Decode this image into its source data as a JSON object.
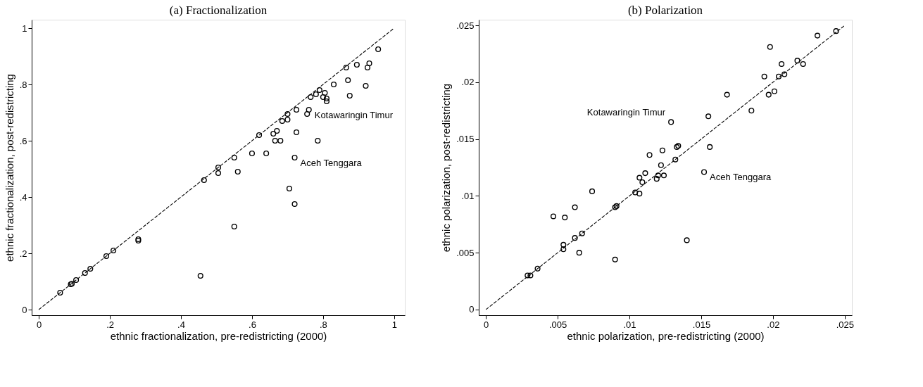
{
  "chart_data": [
    {
      "type": "scatter",
      "title": "(a) Fractionalization",
      "xlabel": "ethnic fractionalization, pre-redistricting (2000)",
      "ylabel": "ethnic fractionalization, post-redistricting",
      "grid": false,
      "xlim": [
        -0.02,
        1.03
      ],
      "ylim": [
        -0.02,
        1.03
      ],
      "xticks": [
        0,
        {
          "value": 0.2,
          "label": ".2"
        },
        {
          "value": 0.4,
          "label": ".4"
        },
        {
          "value": 0.6,
          "label": ".6"
        },
        {
          "value": 0.8,
          "label": ".8"
        },
        1
      ],
      "yticks": [
        0,
        {
          "value": 0.2,
          "label": ".2"
        },
        {
          "value": 0.4,
          "label": ".4"
        },
        {
          "value": 0.6,
          "label": ".6"
        },
        {
          "value": 0.8,
          "label": ".8"
        },
        1
      ],
      "annotations": [
        {
          "text": "Kotawaringin Timur",
          "x": 0.76,
          "y": 0.71
        },
        {
          "text": "Aceh Tenggara",
          "x": 0.72,
          "y": 0.54
        }
      ],
      "series": [
        {
          "type": "scatter",
          "marker": "circle",
          "color": "#000000",
          "x": [
            0.06,
            0.09,
            0.093,
            0.105,
            0.13,
            0.145,
            0.19,
            0.21,
            0.28,
            0.28,
            0.455,
            0.465,
            0.505,
            0.505,
            0.55,
            0.55,
            0.56,
            0.6,
            0.62,
            0.64,
            0.66,
            0.665,
            0.67,
            0.68,
            0.685,
            0.7,
            0.7,
            0.705,
            0.72,
            0.72,
            0.725,
            0.725,
            0.755,
            0.76,
            0.765,
            0.78,
            0.79,
            0.785,
            0.8,
            0.805,
            0.81,
            0.81,
            0.83,
            0.865,
            0.87,
            0.875,
            0.895,
            0.92,
            0.925,
            0.93,
            0.955
          ],
          "values": [
            0.06,
            0.09,
            0.092,
            0.105,
            0.13,
            0.145,
            0.19,
            0.21,
            0.25,
            0.245,
            0.12,
            0.46,
            0.505,
            0.485,
            0.54,
            0.295,
            0.49,
            0.555,
            0.62,
            0.555,
            0.625,
            0.6,
            0.635,
            0.6,
            0.67,
            0.695,
            0.675,
            0.43,
            0.54,
            0.375,
            0.71,
            0.63,
            0.695,
            0.71,
            0.755,
            0.765,
            0.78,
            0.6,
            0.755,
            0.77,
            0.75,
            0.74,
            0.8,
            0.86,
            0.815,
            0.76,
            0.87,
            0.795,
            0.86,
            0.875,
            0.925
          ]
        },
        {
          "type": "line",
          "color": "#000000",
          "line_style": "dashed",
          "x": [
            0,
            1
          ],
          "values": [
            0,
            1
          ]
        }
      ]
    },
    {
      "type": "scatter",
      "title": "(b) Polarization",
      "xlabel": "ethnic polarization, pre-redistricting (2000)",
      "ylabel": "ethnic polarization, post-redistricting",
      "grid": false,
      "xlim": [
        -0.0005,
        0.0255
      ],
      "ylim": [
        -0.0005,
        0.0255
      ],
      "xticks": [
        0,
        {
          "value": 0.005,
          "label": ".005"
        },
        {
          "value": 0.01,
          "label": ".01"
        },
        {
          "value": 0.015,
          "label": ".015"
        },
        {
          "value": 0.02,
          "label": ".02"
        },
        {
          "value": 0.025,
          "label": ".025"
        }
      ],
      "yticks": [
        0,
        {
          "value": 0.005,
          "label": ".005"
        },
        {
          "value": 0.01,
          "label": ".01"
        },
        {
          "value": 0.015,
          "label": ".015"
        },
        {
          "value": 0.02,
          "label": ".02"
        },
        {
          "value": 0.025,
          "label": ".025"
        }
      ],
      "annotations": [
        {
          "text": "Kotawaringin Timur",
          "x": 0.0129,
          "y": 0.0165
        },
        {
          "text": "Aceh Tenggara",
          "x": 0.0152,
          "y": 0.0121
        }
      ],
      "series": [
        {
          "type": "scatter",
          "marker": "circle",
          "color": "#000000",
          "x": [
            0.0029,
            0.0031,
            0.0036,
            0.0047,
            0.0054,
            0.0054,
            0.0055,
            0.0062,
            0.0062,
            0.0065,
            0.0067,
            0.0074,
            0.009,
            0.009,
            0.0091,
            0.0104,
            0.0107,
            0.0107,
            0.0109,
            0.0111,
            0.0114,
            0.0119,
            0.012,
            0.0122,
            0.0123,
            0.0124,
            0.0129,
            0.0132,
            0.0133,
            0.0134,
            0.014,
            0.0152,
            0.0155,
            0.0156,
            0.0168,
            0.0185,
            0.0194,
            0.0197,
            0.0198,
            0.0201,
            0.0204,
            0.0206,
            0.0208,
            0.0217,
            0.0221,
            0.0231,
            0.0244
          ],
          "values": [
            0.003,
            0.003,
            0.0036,
            0.0082,
            0.0053,
            0.0057,
            0.0081,
            0.009,
            0.0063,
            0.005,
            0.0067,
            0.0104,
            0.0044,
            0.009,
            0.0091,
            0.0103,
            0.0116,
            0.0102,
            0.0112,
            0.012,
            0.0136,
            0.0115,
            0.0118,
            0.0127,
            0.014,
            0.0118,
            0.0165,
            0.0132,
            0.0143,
            0.0144,
            0.0061,
            0.0121,
            0.017,
            0.0143,
            0.0189,
            0.0175,
            0.0205,
            0.0189,
            0.0231,
            0.0192,
            0.0205,
            0.0216,
            0.0207,
            0.0219,
            0.0216,
            0.0241,
            0.0245
          ]
        },
        {
          "type": "line",
          "color": "#000000",
          "line_style": "dashed",
          "x": [
            0,
            0.025
          ],
          "values": [
            0,
            0.025
          ]
        }
      ]
    }
  ]
}
